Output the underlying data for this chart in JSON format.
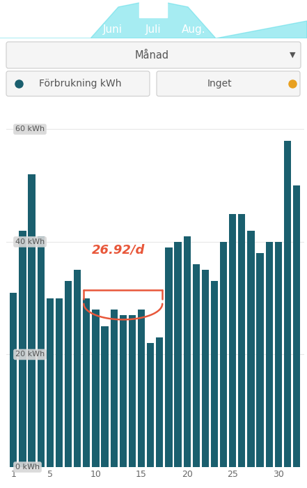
{
  "values": [
    31,
    42,
    52,
    41,
    30,
    30,
    33,
    35,
    30,
    28,
    25,
    28,
    27,
    27,
    28,
    22,
    23,
    39,
    40,
    41,
    36,
    35,
    33,
    40,
    45,
    45,
    42,
    38,
    40,
    40,
    58,
    50
  ],
  "bar_color": "#1a5f6e",
  "background_color": "#ffffff",
  "grid_color": "#e8e8e8",
  "ylim": [
    0,
    65
  ],
  "yticks": [
    0,
    20,
    40,
    60
  ],
  "ytick_labels": [
    "0 kWh",
    "20 kWh",
    "40 kWh",
    "60 kWh"
  ],
  "xticks": [
    1,
    5,
    10,
    15,
    20,
    25,
    30
  ],
  "annotation_text": "26.92/d",
  "annotation_color": "#e8573a",
  "header_color": "#3fc8d8",
  "months": [
    "Juni",
    "Juli",
    "Aug."
  ],
  "dropdown_text": "Månad",
  "legend1_text": "Förbrukning kWh",
  "legend1_color": "#1a5f6e",
  "legend2_text": "Inget",
  "legend2_color": "#e8a020",
  "title_highlight": "Juli",
  "fig_width": 4.41,
  "fig_height": 7.0,
  "fig_dpi": 100
}
